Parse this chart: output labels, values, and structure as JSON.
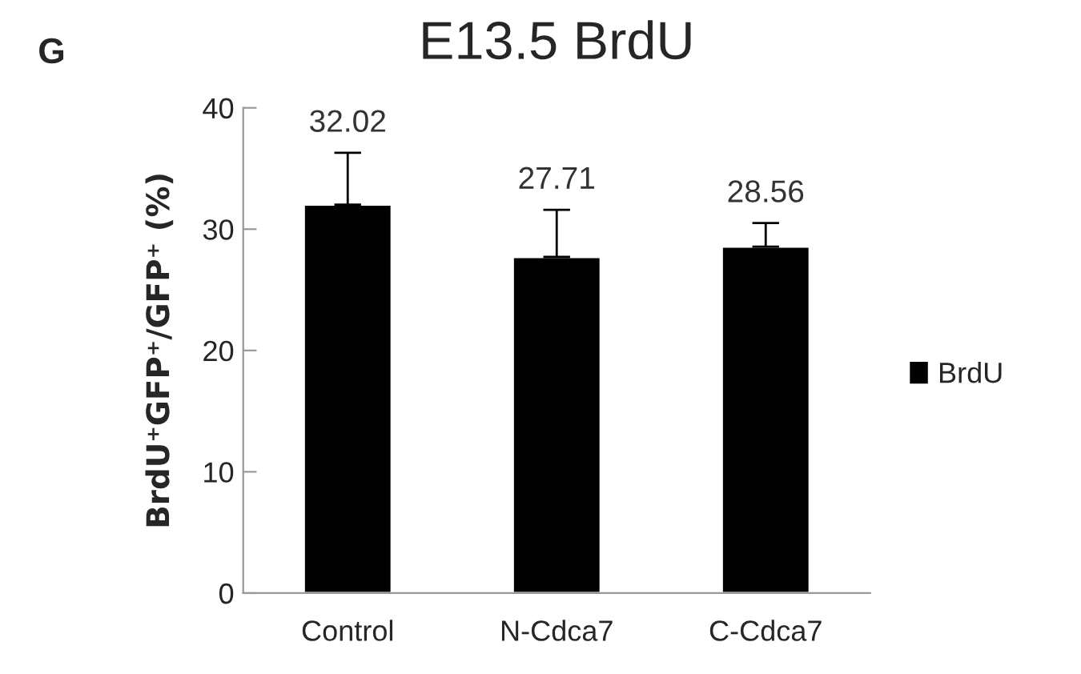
{
  "chart_data": {
    "type": "bar",
    "title": "E13.5 BrdU",
    "ylabel": "BrdU⁺GFP⁺/GFP⁺ (%)",
    "annotations": [
      "G"
    ],
    "categories": [
      "Control",
      "N-Cdca7",
      "C-Cdca7"
    ],
    "series": [
      {
        "name": "BrdU",
        "color": "#000000",
        "values": [
          32.02,
          27.71,
          28.56
        ],
        "errors": [
          [
            32.02,
            36.3
          ],
          [
            27.71,
            31.6
          ],
          [
            28.56,
            30.5
          ]
        ]
      }
    ],
    "ylim": [
      0,
      40
    ],
    "yticks": [
      0,
      10,
      20,
      30,
      40
    ],
    "data_labels": true,
    "grid": false,
    "legend": "right"
  }
}
